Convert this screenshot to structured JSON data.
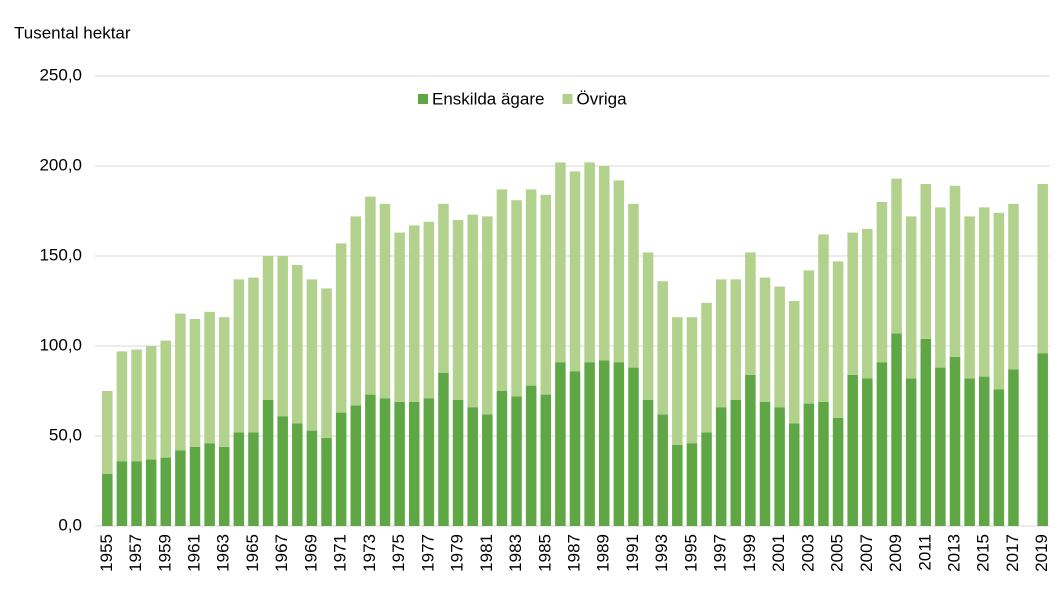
{
  "chart_data": {
    "type": "stacked_bar",
    "y_label": "Tusental hektar",
    "categories": [
      "1955",
      null,
      "1957",
      null,
      "1959",
      null,
      "1961",
      null,
      "1963",
      null,
      "1965",
      null,
      "1967",
      null,
      "1969",
      null,
      "1971",
      null,
      "1973",
      null,
      "1975",
      null,
      "1977",
      null,
      "1979",
      null,
      "1981",
      null,
      "1983",
      null,
      "1985",
      null,
      "1987",
      null,
      "1989",
      null,
      "1991",
      null,
      "1993",
      null,
      "1995",
      null,
      "1997",
      null,
      "1999",
      null,
      "2001",
      null,
      "2003",
      null,
      "2005",
      null,
      "2007",
      null,
      "2009",
      null,
      "2011",
      null,
      "2013",
      null,
      "2015",
      null,
      "2017",
      null,
      "2019"
    ],
    "series": [
      {
        "name": "Enskilda ägare",
        "color": "#5fa744",
        "values": [
          29,
          36,
          36,
          37,
          38,
          42,
          44,
          46,
          44,
          52,
          52,
          70,
          61,
          57,
          53,
          49,
          63,
          67,
          73,
          71,
          69,
          69,
          71,
          85,
          70,
          66,
          62,
          75,
          72,
          78,
          73,
          91,
          86,
          91,
          92,
          91,
          88,
          70,
          62,
          45,
          46,
          52,
          66,
          70,
          84,
          69,
          66,
          57,
          68,
          69,
          60,
          84,
          82,
          91,
          107,
          82,
          104,
          88,
          94,
          82,
          83,
          76,
          87,
          null,
          96
        ]
      },
      {
        "name": "Övriga",
        "color": "#b1d18c",
        "values": [
          46,
          61,
          62,
          63,
          65,
          76,
          71,
          73,
          72,
          85,
          86,
          80,
          89,
          88,
          84,
          83,
          94,
          105,
          110,
          108,
          94,
          98,
          98,
          94,
          100,
          107,
          110,
          112,
          109,
          109,
          111,
          111,
          111,
          111,
          108,
          101,
          91,
          82,
          74,
          71,
          70,
          72,
          71,
          67,
          68,
          69,
          67,
          68,
          74,
          93,
          87,
          79,
          83,
          89,
          86,
          90,
          86,
          89,
          95,
          90,
          94,
          98,
          92,
          null,
          94
        ]
      }
    ],
    "ylim": [
      0,
      250
    ],
    "yticks": [
      {
        "value": 0,
        "label": "0,0"
      },
      {
        "value": 50,
        "label": "50,0"
      },
      {
        "value": 100,
        "label": "100,0"
      },
      {
        "value": 150,
        "label": "150,0"
      },
      {
        "value": 200,
        "label": "200,0"
      },
      {
        "value": 250,
        "label": "250,0"
      }
    ],
    "grid": true,
    "legend": "top"
  }
}
